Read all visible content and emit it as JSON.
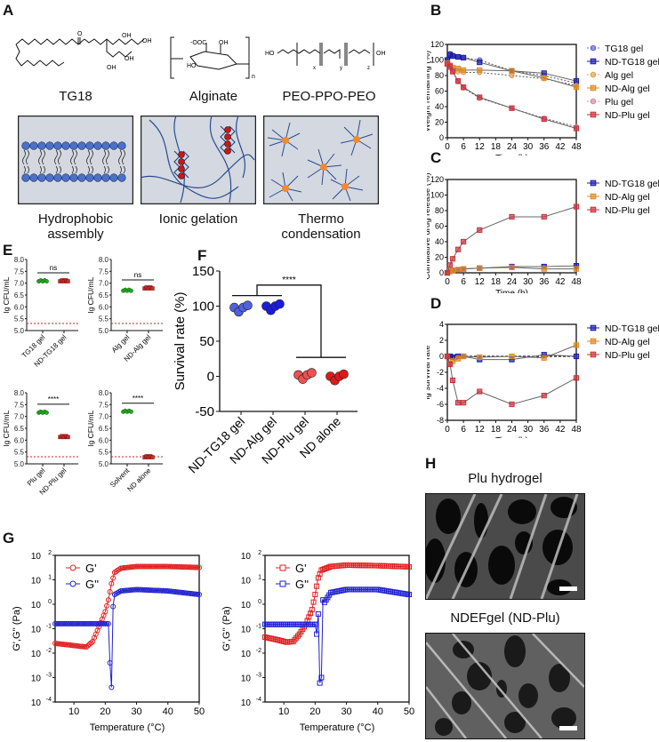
{
  "panels": {
    "A": {
      "label": "A",
      "structures": [
        {
          "name": "TG18"
        },
        {
          "name": "Alginate"
        },
        {
          "name": "PEO-PPO-PEO"
        }
      ],
      "schematics": [
        {
          "caption_line1": "Hydrophobic",
          "caption_line2": "assembly"
        },
        {
          "caption_line1": "Ionic gelation",
          "caption_line2": ""
        },
        {
          "caption_line1": "Thermo",
          "caption_line2": "condensation"
        }
      ],
      "chem_labels": {
        "oh": "OH",
        "ho": "HO",
        "ooc": "-OOC",
        "o": "O",
        "n": "n",
        "x": "x",
        "y": "y",
        "z": "z"
      }
    },
    "B": {
      "label": "B"
    },
    "C": {
      "label": "C"
    },
    "D": {
      "label": "D"
    },
    "E": {
      "label": "E"
    },
    "F": {
      "label": "F"
    },
    "G": {
      "label": "G"
    },
    "H": {
      "label": "H",
      "image1_title": "Plu hydrogel",
      "image2_title": "NDEFgel (ND-Plu)"
    }
  },
  "chart_data": [
    {
      "id": "B",
      "type": "line",
      "title": "",
      "xlabel": "Time (h)",
      "ylabel": "Weight remaining (%)",
      "xlim": [
        0,
        48
      ],
      "ylim": [
        0,
        120
      ],
      "xticks": [
        0,
        6,
        12,
        18,
        24,
        30,
        36,
        42,
        48
      ],
      "yticks": [
        0,
        20,
        40,
        60,
        80,
        100,
        120
      ],
      "legend_position": "right",
      "x": [
        0,
        1,
        2,
        4,
        6,
        12,
        24,
        36,
        48
      ],
      "series": [
        {
          "name": "TG18 gel",
          "color": "#5a6bd6",
          "marker": "circle",
          "dashed": true,
          "values": [
            100,
            108,
            106,
            104,
            103,
            100,
            86,
            80,
            70
          ]
        },
        {
          "name": "ND-TG18 gel",
          "color": "#1a1aa8",
          "marker": "square",
          "dashed": false,
          "values": [
            100,
            107,
            105,
            104,
            103,
            97,
            86,
            83,
            73
          ]
        },
        {
          "name": "Alg gel",
          "color": "#e0a050",
          "marker": "circle",
          "dashed": true,
          "values": [
            95,
            92,
            88,
            85,
            84,
            84,
            80,
            76,
            67
          ]
        },
        {
          "name": "ND-Alg gel",
          "color": "#e08a20",
          "marker": "square",
          "dashed": false,
          "values": [
            96,
            93,
            90,
            89,
            87,
            87,
            86,
            77,
            65
          ]
        },
        {
          "name": "Plu gel",
          "color": "#d88a9a",
          "marker": "circle",
          "dashed": true,
          "values": [
            95,
            90,
            85,
            72,
            64,
            51,
            38,
            25,
            14
          ]
        },
        {
          "name": "ND-Plu gel",
          "color": "#c8323c",
          "marker": "square",
          "dashed": false,
          "values": [
            95,
            92,
            85,
            73,
            65,
            52,
            38,
            24,
            12
          ]
        }
      ]
    },
    {
      "id": "C",
      "type": "line",
      "title": "",
      "xlabel": "Time (h)",
      "ylabel": "Cumulative drug release (%)",
      "xlim": [
        0,
        48
      ],
      "ylim": [
        0,
        120
      ],
      "xticks": [
        0,
        6,
        12,
        18,
        24,
        30,
        36,
        42,
        48
      ],
      "yticks": [
        0,
        20,
        40,
        60,
        80,
        100,
        120
      ],
      "legend_position": "right",
      "x": [
        0,
        1,
        2,
        4,
        6,
        12,
        24,
        36,
        48
      ],
      "series": [
        {
          "name": "ND-TG18 gel",
          "color": "#1a1aa8",
          "marker": "square",
          "values": [
            0,
            2,
            3,
            4,
            5,
            6,
            8,
            8,
            9
          ]
        },
        {
          "name": "ND-Alg gel",
          "color": "#e08a20",
          "marker": "square",
          "values": [
            0,
            2,
            3,
            4,
            5,
            6,
            7,
            5,
            5
          ]
        },
        {
          "name": "ND-Plu gel",
          "color": "#c8323c",
          "marker": "square",
          "values": [
            0,
            10,
            18,
            30,
            40,
            55,
            72,
            72,
            85
          ]
        }
      ]
    },
    {
      "id": "D",
      "type": "line",
      "title": "",
      "xlabel": "Time (h)",
      "ylabel": "lg survival rate",
      "xlim": [
        0,
        48
      ],
      "ylim": [
        -8,
        4
      ],
      "xticks": [
        0,
        6,
        12,
        18,
        24,
        30,
        36,
        42,
        48
      ],
      "yticks": [
        4,
        2,
        0,
        -2,
        -4,
        -6,
        -8
      ],
      "legend_position": "right",
      "x": [
        0,
        1,
        2,
        4,
        6,
        12,
        24,
        36,
        48
      ],
      "series": [
        {
          "name": "ND-TG18 gel",
          "color": "#1a1aa8",
          "marker": "square",
          "values": [
            0,
            0,
            -0.1,
            0,
            0,
            -0.4,
            -0.4,
            0.2,
            0
          ]
        },
        {
          "name": "ND-Alg gel",
          "color": "#e08a20",
          "marker": "square",
          "values": [
            0,
            -0.9,
            -0.6,
            -0.3,
            0,
            -0.1,
            0,
            -0.2,
            1.4
          ]
        },
        {
          "name": "ND-Plu gel",
          "color": "#c8323c",
          "marker": "square",
          "values": [
            0,
            -1,
            -3,
            -5.8,
            -5.8,
            -4.4,
            -6,
            -4.9,
            -2.7
          ]
        }
      ]
    },
    {
      "id": "E",
      "type": "scatter",
      "ylabel": "lg CFU/mL",
      "ylim": [
        5.0,
        8.0
      ],
      "yticks": [
        "5.0",
        "5.5",
        "6.0",
        "6.5",
        "7.0",
        "7.5",
        "8.0"
      ],
      "detection_limit": 5.3,
      "subplots": [
        {
          "categories": [
            "TG18 gel",
            "ND-TG18 gel"
          ],
          "means": [
            7.1,
            7.1
          ],
          "significance": "ns"
        },
        {
          "categories": [
            "Alg gel",
            "ND-Alg gel"
          ],
          "means": [
            6.7,
            6.8
          ],
          "significance": "ns"
        },
        {
          "categories": [
            "Plu gel",
            "ND-Plu gel"
          ],
          "means": [
            7.18,
            6.15
          ],
          "significance": "****"
        },
        {
          "categories": [
            "Solvent",
            "ND alone"
          ],
          "means": [
            7.22,
            5.3
          ],
          "significance": "****"
        }
      ]
    },
    {
      "id": "F",
      "type": "scatter",
      "ylabel": "Survival rate (%)",
      "ylim": [
        -50,
        150
      ],
      "yticks": [
        "-50",
        "0",
        "50",
        "100",
        "150"
      ],
      "categories": [
        "ND-TG18 gel",
        "ND-Alg gel",
        "ND-Plu gel",
        "ND alone"
      ],
      "means": [
        98,
        100,
        2,
        0
      ],
      "significance": "****"
    },
    {
      "id": "G-left",
      "type": "scatter",
      "xlabel": "Temperature (°C)",
      "ylabel": "G',G'' (Pa)",
      "xlim": [
        4,
        50
      ],
      "yscale": "log",
      "ylim": [
        0.0001,
        100
      ],
      "xticks": [
        "10",
        "20",
        "30",
        "40",
        "50"
      ],
      "yticks": [
        "10",
        "10",
        "10",
        "10",
        "10",
        "10",
        "10"
      ],
      "ytick_exps": [
        "-4",
        "-3",
        "-2",
        "-1",
        "0",
        "1",
        "2"
      ],
      "marker": "circle",
      "series": [
        {
          "name": "G'",
          "color": "#e02020",
          "x": [
            4,
            8,
            12,
            14,
            16,
            18,
            20,
            21,
            22,
            23,
            25,
            30,
            40,
            50
          ],
          "values": [
            0.025,
            0.022,
            0.019,
            0.018,
            0.03,
            0.12,
            0.5,
            1.5,
            7,
            20,
            30,
            35,
            35,
            32
          ]
        },
        {
          "name": "G''",
          "color": "#2020d0",
          "x": [
            4,
            10,
            20,
            21,
            21.5,
            22,
            22.5,
            23,
            25,
            30,
            40,
            50
          ],
          "values": [
            0.16,
            0.16,
            0.16,
            0.16,
            0.004,
            0.0004,
            0.8,
            2.5,
            3.5,
            4,
            3.5,
            2.5
          ]
        }
      ]
    },
    {
      "id": "G-right",
      "type": "scatter",
      "xlabel": "Temperature (°C)",
      "ylabel": "G',G'' (Pa)",
      "xlim": [
        4,
        50
      ],
      "yscale": "log",
      "ylim": [
        0.0001,
        100
      ],
      "xticks": [
        "10",
        "20",
        "30",
        "40",
        "50"
      ],
      "yticks": [
        "10",
        "10",
        "10",
        "10",
        "10",
        "10",
        "10"
      ],
      "ytick_exps": [
        "-4",
        "-3",
        "-2",
        "-1",
        "0",
        "1",
        "2"
      ],
      "marker": "square",
      "series": [
        {
          "name": "G'",
          "color": "#e02020",
          "x": [
            4,
            8,
            11,
            13,
            15,
            17,
            19,
            20,
            21,
            22,
            25,
            30,
            40,
            50
          ],
          "values": [
            0.045,
            0.035,
            0.028,
            0.03,
            0.06,
            0.15,
            0.6,
            2.5,
            12,
            25,
            35,
            40,
            38,
            34
          ]
        },
        {
          "name": "G''",
          "color": "#2020d0",
          "x": [
            4,
            10,
            20,
            20.5,
            21,
            21.5,
            22,
            22.5,
            23,
            25,
            30,
            40,
            50
          ],
          "values": [
            0.15,
            0.15,
            0.15,
            0.06,
            0.4,
            0.0006,
            0.001,
            1.5,
            1.2,
            3,
            4,
            4,
            2.5
          ]
        }
      ]
    }
  ]
}
